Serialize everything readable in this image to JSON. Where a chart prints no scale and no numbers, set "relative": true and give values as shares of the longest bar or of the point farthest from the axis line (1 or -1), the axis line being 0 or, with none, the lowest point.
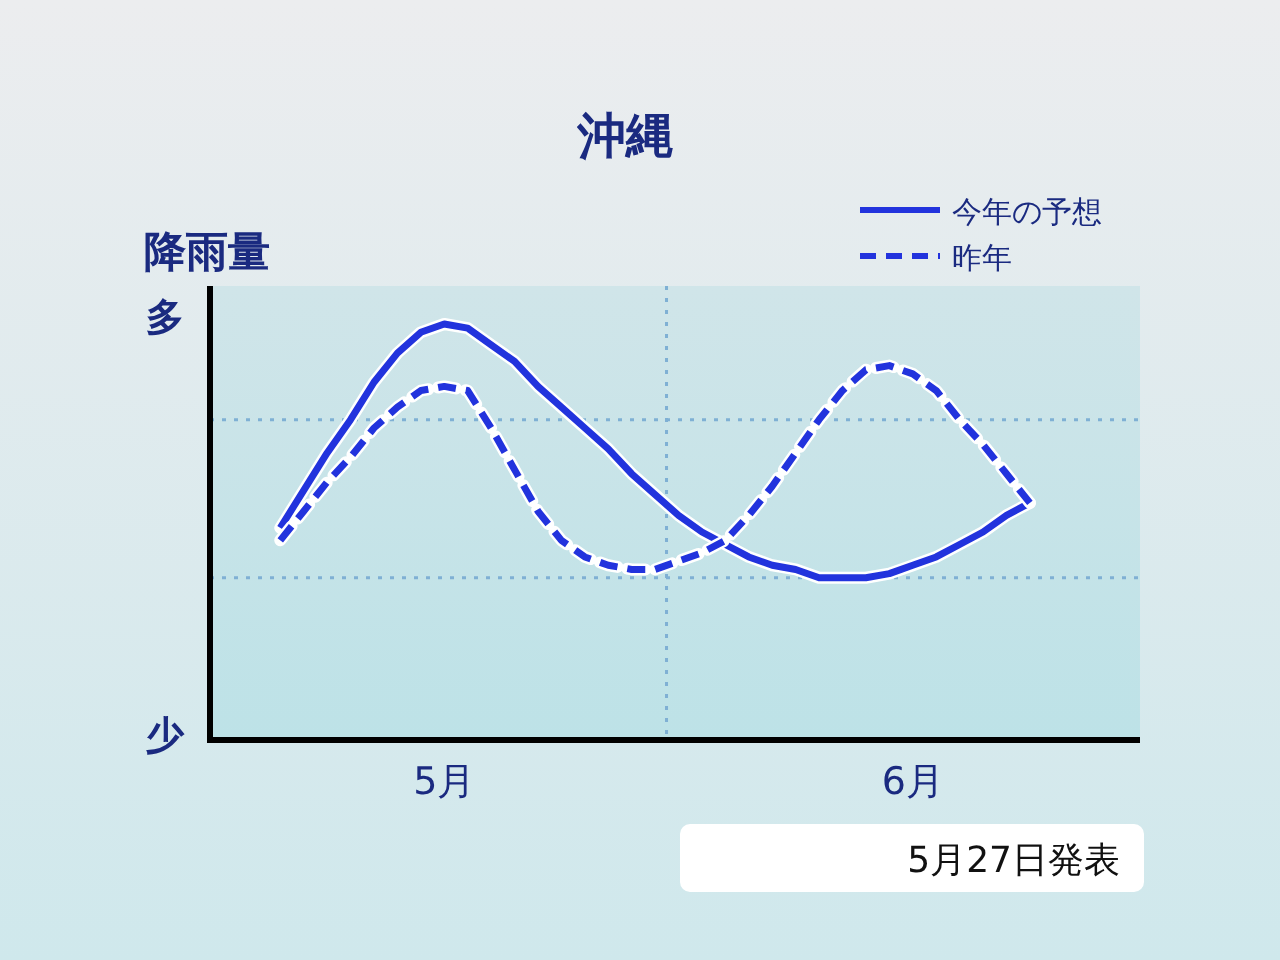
{
  "chart_data": {
    "type": "line",
    "title": "沖縄",
    "ylabel": "降雨量",
    "relative": true,
    "legend": "top right",
    "annotations": [
      "多",
      "少",
      "5月27日発表"
    ],
    "categories": [
      null,
      null,
      null,
      null,
      null,
      null,
      null,
      "5月",
      null,
      null,
      null,
      null,
      null,
      null,
      null,
      null,
      null,
      null,
      null,
      null,
      null,
      null,
      null,
      null,
      null,
      null,
      null,
      "6月",
      null,
      null,
      null,
      null,
      null
    ],
    "ref_lines": [
      {
        "axis": "y",
        "value": 0.77,
        "line_style": "dotted",
        "color": "#7fb0d4"
      },
      {
        "axis": "y",
        "value": 0.39,
        "line_style": "dotted",
        "color": "#7fb0d4"
      }
    ],
    "series": [
      {
        "name": "今年の予想",
        "color": "#2233dd",
        "line_style": "solid",
        "values": [
          0.51,
          0.6,
          0.69,
          0.77,
          0.86,
          0.93,
          0.98,
          1.0,
          0.99,
          0.95,
          0.91,
          0.85,
          0.8,
          0.75,
          0.7,
          0.64,
          0.59,
          0.54,
          0.5,
          0.47,
          0.44,
          0.42,
          0.41,
          0.39,
          0.39,
          0.39,
          0.4,
          0.42,
          0.44,
          0.47,
          0.5,
          0.54,
          0.57
        ]
      },
      {
        "name": "昨年",
        "color": "#2233dd",
        "line_style": "dashed",
        "values": [
          0.48,
          0.55,
          0.62,
          0.68,
          0.75,
          0.8,
          0.84,
          0.85,
          0.84,
          0.75,
          0.65,
          0.55,
          0.48,
          0.44,
          0.42,
          0.41,
          0.41,
          0.43,
          0.45,
          0.48,
          0.54,
          0.61,
          0.69,
          0.77,
          0.84,
          0.89,
          0.9,
          0.88,
          0.84,
          0.77,
          0.71,
          0.64,
          0.57
        ]
      }
    ]
  }
}
